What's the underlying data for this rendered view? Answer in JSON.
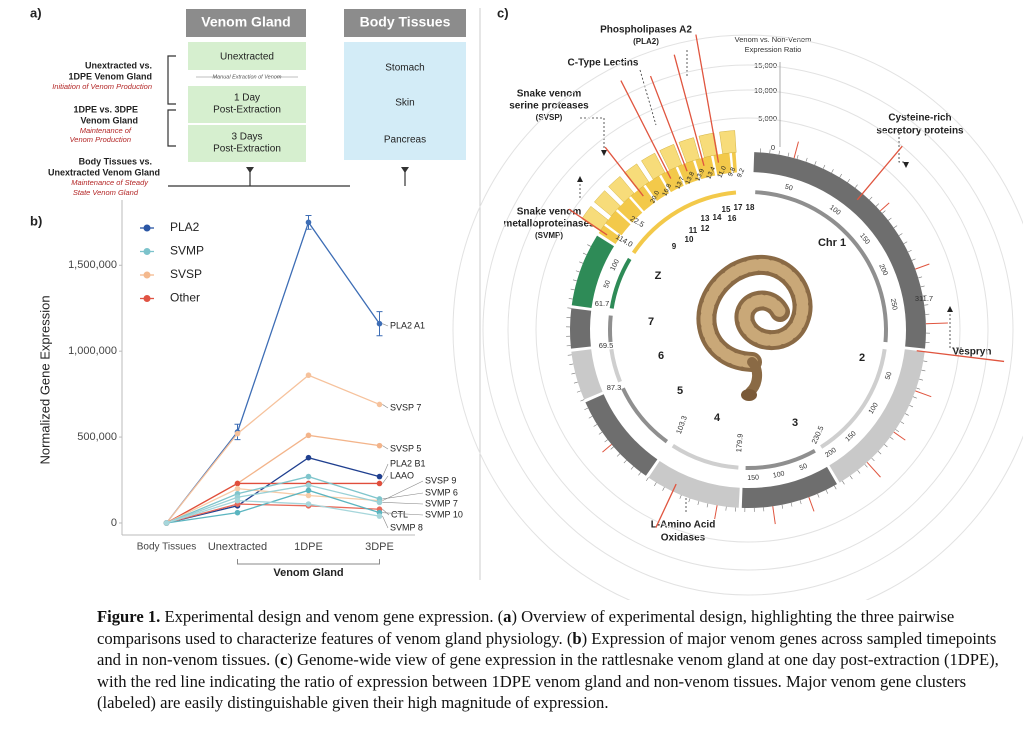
{
  "panel_a": {
    "panel_label": "a)",
    "headers": [
      "Venom Gland",
      "Body Tissues"
    ],
    "venom_gland_boxes": [
      [
        "Unextracted"
      ],
      [
        "1 Day",
        "Post-Extraction"
      ],
      [
        "3 Days",
        "Post-Extraction"
      ]
    ],
    "extraction_note": "Manual Extraction of Venom",
    "body_tissues": [
      "Stomach",
      "Skin",
      "Pancreas"
    ],
    "comparisons": [
      {
        "title": [
          "Unextracted vs.",
          "1DPE Venom Gland"
        ],
        "note": [
          "Initiation of Venom Production"
        ]
      },
      {
        "title": [
          "1DPE vs. 3DPE",
          "Venom Gland"
        ],
        "note": [
          "Maintenance of",
          "Venom Production"
        ]
      },
      {
        "title": [
          "Body Tissues vs.",
          "Unextracted Venom Gland"
        ],
        "note": [
          "Maintenance of Steady",
          "State Venom Gland"
        ]
      }
    ]
  },
  "chart_data": {
    "type": "line",
    "panel_label": "b)",
    "categories": [
      "Body Tissues",
      "Unextracted",
      "1DPE",
      "3DPE"
    ],
    "x_group_label": "Venom Gland",
    "ylabel": "Normalized Gene Expression",
    "ylim": [
      -70000,
      1880000
    ],
    "yticks": [
      0,
      {
        "value": 500000,
        "label": "500,000"
      },
      {
        "value": 1000000,
        "label": "1,000,000"
      },
      {
        "value": 1500000,
        "label": "1,500,000"
      }
    ],
    "grid": false,
    "legend": [
      {
        "name": "PLA2",
        "color": "#2a56a5"
      },
      {
        "name": "SVMP",
        "color": "#7cc3cb"
      },
      {
        "name": "SVSP",
        "color": "#f4b98e"
      },
      {
        "name": "Other",
        "color": "#e05343"
      }
    ],
    "series": [
      {
        "name": "PLA2 A1",
        "color": "#3d6db5",
        "values": [
          0,
          530000,
          1750000,
          1160000
        ],
        "errors": [
          null,
          45000,
          40000,
          70000
        ]
      },
      {
        "name": "SVSP 7",
        "color": "#f6c29c",
        "values": [
          0,
          520000,
          860000,
          690000
        ]
      },
      {
        "name": "SVSP 5",
        "color": "#f3b48a",
        "values": [
          0,
          230000,
          510000,
          450000
        ]
      },
      {
        "name": "PLA2 B1",
        "color": "#1f3f8f",
        "values": [
          0,
          100000,
          380000,
          270000
        ]
      },
      {
        "name": "LAAO",
        "color": "#e04e3c",
        "values": [
          0,
          230000,
          230000,
          230000
        ]
      },
      {
        "name": "SVSP 9",
        "color": "#f7cba7",
        "values": [
          0,
          200000,
          160000,
          130000
        ]
      },
      {
        "name": "SVMP 6",
        "color": "#7fc5cc",
        "values": [
          0,
          170000,
          270000,
          140000
        ]
      },
      {
        "name": "SVMP 7",
        "color": "#9ad1d6",
        "values": [
          0,
          150000,
          220000,
          120000
        ]
      },
      {
        "name": "CTL",
        "color": "#e86a5a",
        "values": [
          0,
          110000,
          100000,
          80000
        ]
      },
      {
        "name": "SVMP 10",
        "color": "#5bb5c0",
        "values": [
          0,
          60000,
          190000,
          60000
        ]
      },
      {
        "name": "SVMP 8",
        "color": "#a6d6db",
        "values": [
          0,
          130000,
          110000,
          40000
        ]
      }
    ]
  },
  "panel_c": {
    "panel_label": "c)",
    "scale_title": [
      "Venom vs. Non-Venom",
      "Expression Ratio"
    ],
    "scale_ticks": [
      "15,000",
      "10,000",
      "5,000",
      "0"
    ],
    "clusters": {
      "pla2": [
        "Phospholipases A2",
        "(PLA2)"
      ],
      "ctl": [
        "C-Type Lectins"
      ],
      "svsp": [
        "Snake venom",
        "serine proteases",
        "(SVSP)"
      ],
      "svmp": [
        "Snake venom",
        "metalloproteinases",
        "(SVMP)"
      ],
      "crisp": [
        "Cysteine-rich",
        "secretory proteins"
      ],
      "vespryn": [
        "Vespryn"
      ],
      "laao": [
        "L-Amino Acid",
        "Oxidases"
      ]
    },
    "chromosomes": [
      "Chr 1",
      "2",
      "3",
      "4",
      "5",
      "6",
      "7",
      "Z"
    ],
    "microchromosomes": [
      "9",
      "10",
      "11",
      "12",
      "13",
      "14",
      "15",
      "16",
      "17",
      "18"
    ],
    "lengths": [
      "311.7",
      "61.7",
      "69.5",
      "87.3",
      "103.3",
      "179.9",
      "230.5",
      "22.5",
      "114.0"
    ],
    "pla2_values": [
      "20.0",
      "16.8",
      "13.7",
      "13.8",
      "13.9",
      "13.4",
      "11.0",
      "9.8",
      "9.2"
    ],
    "position_ticks": [
      "50",
      "100",
      "150",
      "200",
      "250",
      "50",
      "100",
      "150",
      "200",
      "50",
      "100",
      "150",
      "50",
      "100"
    ]
  },
  "caption": {
    "label": "Figure 1.",
    "parts": [
      "Experimental design and venom gene expression. (",
      "a",
      ") Overview of experimental design, highlighting the three pairwise comparisons used to characterize features of venom gland physiology. (",
      "b",
      ") Expression of major venom genes across sampled timepoints and in non-venom tissues. (",
      "c",
      ") Genome-wide view of gene expression in the rattlesnake venom gland at one day post-extraction (1DPE), with the red line indicating the ratio of expression between 1DPE venom gland and non-venom tissues. Major venom gene clusters (labeled) are easily distinguishable given their high magnitude of expression."
    ]
  }
}
